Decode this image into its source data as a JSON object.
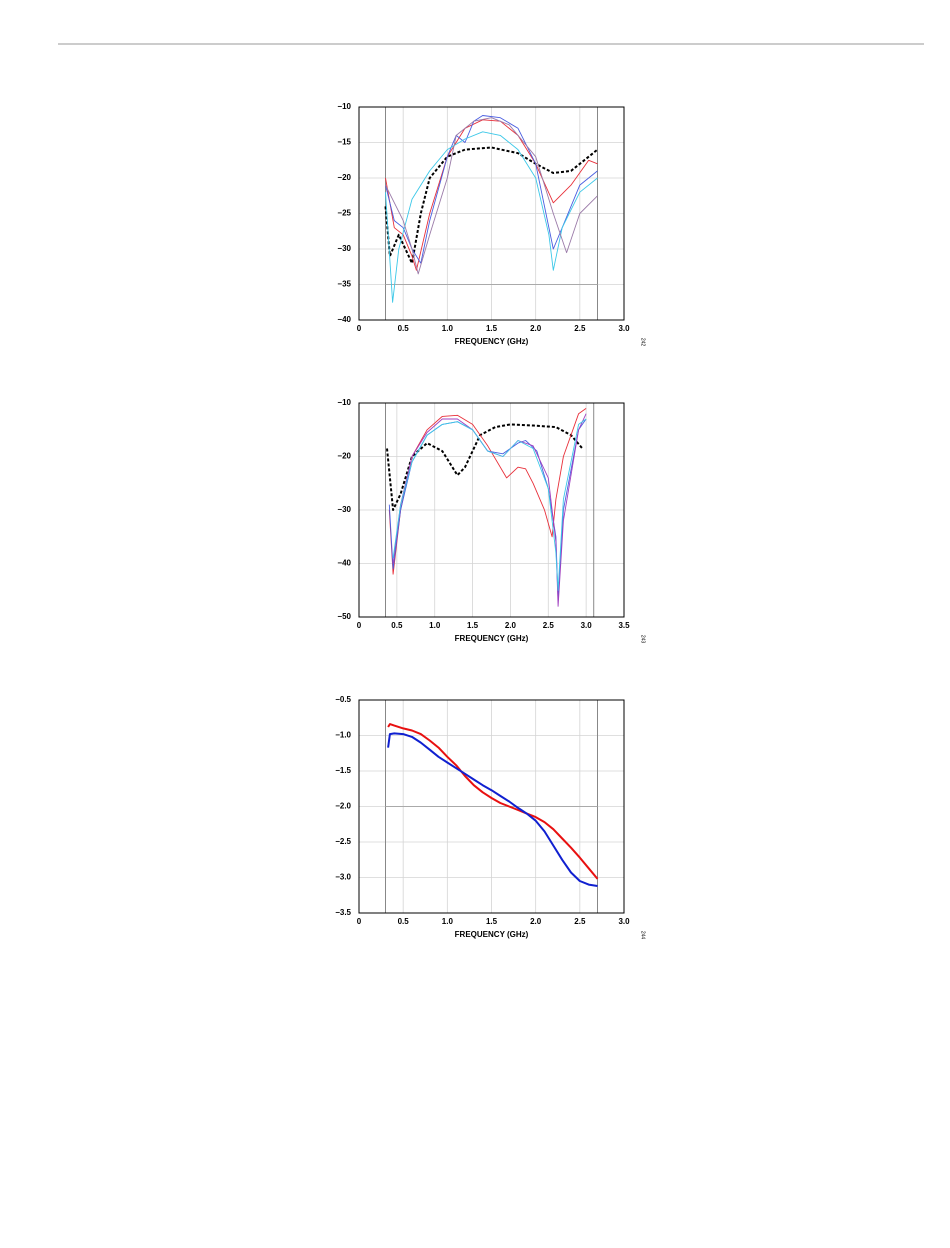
{
  "chart_data": [
    {
      "type": "line",
      "xlabel": "FREQUENCY (GHz)",
      "figure_number": "242",
      "xlim": [
        0,
        3
      ],
      "xticks": [
        0,
        0.5,
        {
          "value": 1,
          "label": "1.0"
        },
        1.5,
        {
          "value": 2,
          "label": "2.0"
        },
        2.5,
        {
          "value": 3,
          "label": "3.0"
        }
      ],
      "ylim": [
        -40,
        -10
      ],
      "yticks": [
        {
          "value": -10,
          "label": "−10"
        },
        {
          "value": -15,
          "label": "−15"
        },
        {
          "value": -20,
          "label": "−20"
        },
        {
          "value": -25,
          "label": "−25"
        },
        {
          "value": -30,
          "label": "−30"
        },
        {
          "value": -35,
          "label": "−35"
        },
        {
          "value": -40,
          "label": "−40"
        }
      ],
      "grid": true,
      "vlines": [
        0.3,
        2.7
      ],
      "hlines": [
        -35
      ],
      "series": [
        {
          "color": "#000000",
          "style": "dashed",
          "x": [
            0.3,
            0.35,
            0.45,
            0.6,
            0.7,
            0.8,
            1.0,
            1.2,
            1.5,
            1.8,
            2.0,
            2.2,
            2.4,
            2.6,
            2.7
          ],
          "y": [
            -24,
            -31,
            -28,
            -32,
            -25,
            -20,
            -17,
            -16,
            -15.7,
            -16.5,
            -18,
            -19.3,
            -19,
            -17,
            -16
          ]
        },
        {
          "color": "#e8303a",
          "style": "solid",
          "x": [
            0.3,
            0.4,
            0.5,
            0.6,
            0.65,
            0.8,
            1.0,
            1.2,
            1.4,
            1.6,
            1.8,
            2.0,
            2.2,
            2.4,
            2.6,
            2.7
          ],
          "y": [
            -20,
            -27,
            -28,
            -31,
            -33,
            -25,
            -17,
            -13,
            -11.8,
            -12,
            -14,
            -18,
            -23.5,
            -21,
            -17.5,
            -18
          ]
        },
        {
          "color": "#4a5ee0",
          "style": "solid",
          "x": [
            0.3,
            0.4,
            0.5,
            0.6,
            0.7,
            0.8,
            1.0,
            1.1,
            1.2,
            1.3,
            1.4,
            1.6,
            1.8,
            2.0,
            2.2,
            2.3,
            2.5,
            2.7
          ],
          "y": [
            -21,
            -26,
            -27,
            -30,
            -32,
            -26,
            -17,
            -14,
            -15,
            -12,
            -11.2,
            -11.5,
            -13,
            -18,
            -30,
            -27,
            -21,
            -19
          ]
        },
        {
          "color": "#3cc8e8",
          "style": "solid",
          "x": [
            0.3,
            0.38,
            0.45,
            0.6,
            0.8,
            1.0,
            1.2,
            1.4,
            1.6,
            1.8,
            2.0,
            2.15,
            2.2,
            2.3,
            2.5,
            2.7
          ],
          "y": [
            -22,
            -37.5,
            -30,
            -23,
            -19,
            -16,
            -14.5,
            -13.5,
            -14,
            -16,
            -20,
            -28,
            -33,
            -27,
            -22,
            -20
          ]
        },
        {
          "color": "#9a7aa8",
          "style": "solid",
          "x": [
            0.3,
            0.5,
            0.6,
            0.67,
            0.8,
            1.0,
            1.1,
            1.3,
            1.5,
            1.7,
            2.0,
            2.2,
            2.35,
            2.5,
            2.7
          ],
          "y": [
            -21,
            -26,
            -30,
            -33.5,
            -28,
            -20,
            -14,
            -12,
            -11.5,
            -12.5,
            -17,
            -25,
            -30.5,
            -25,
            -22.5
          ]
        }
      ]
    },
    {
      "type": "line",
      "xlabel": "FREQUENCY (GHz)",
      "figure_number": "243",
      "xlim": [
        0,
        3.5
      ],
      "xticks": [
        0,
        0.5,
        {
          "value": 1,
          "label": "1.0"
        },
        1.5,
        {
          "value": 2,
          "label": "2.0"
        },
        2.5,
        {
          "value": 3,
          "label": "3.0"
        },
        3.5
      ],
      "ylim": [
        -50,
        -10
      ],
      "yticks": [
        {
          "value": -10,
          "label": "−10"
        },
        {
          "value": -20,
          "label": "−20"
        },
        {
          "value": -30,
          "label": "−30"
        },
        {
          "value": -40,
          "label": "−40"
        },
        {
          "value": -50,
          "label": "−50"
        }
      ],
      "grid": true,
      "vlines": [
        0.35,
        3.1
      ],
      "hlines": [],
      "series": [
        {
          "color": "#000000",
          "style": "dashed",
          "x": [
            0.37,
            0.45,
            0.55,
            0.7,
            0.9,
            1.1,
            1.3,
            1.4,
            1.6,
            1.8,
            2.0,
            2.3,
            2.6,
            2.8,
            2.95
          ],
          "y": [
            -18.5,
            -30,
            -27,
            -20,
            -17.5,
            -19,
            -23.5,
            -22,
            -16,
            -14.5,
            -14,
            -14.2,
            -14.5,
            -16,
            -18.5
          ]
        },
        {
          "color": "#e8303a",
          "style": "solid",
          "x": [
            0.4,
            0.45,
            0.55,
            0.7,
            0.9,
            1.1,
            1.3,
            1.5,
            1.7,
            1.95,
            2.1,
            2.2,
            2.3,
            2.45,
            2.55,
            2.6,
            2.7,
            2.9,
            3.0
          ],
          "y": [
            -30,
            -42,
            -30,
            -20,
            -15,
            -12.5,
            -12.3,
            -14,
            -18,
            -24,
            -22,
            -22.3,
            -25,
            -30,
            -35,
            -28,
            -20,
            -12,
            -11
          ]
        },
        {
          "color": "#4a5ee0",
          "style": "solid",
          "x": [
            0.4,
            0.45,
            0.55,
            0.7,
            0.9,
            1.1,
            1.3,
            1.5,
            1.7,
            1.9,
            2.1,
            2.2,
            2.35,
            2.5,
            2.6,
            2.63,
            2.7,
            2.9,
            3.0
          ],
          "y": [
            -29,
            -41,
            -30,
            -21,
            -16,
            -14,
            -13.5,
            -15,
            -19,
            -19.5,
            -17.5,
            -17,
            -19,
            -26,
            -35,
            -47,
            -30,
            -15,
            -13
          ]
        },
        {
          "color": "#a040c0",
          "style": "solid",
          "x": [
            0.45,
            0.55,
            0.7,
            0.9,
            1.1,
            1.3,
            1.5,
            1.7,
            1.9,
            2.1,
            2.3,
            2.5,
            2.6,
            2.63,
            2.7,
            2.9,
            3.0
          ],
          "y": [
            -40,
            -29,
            -20,
            -15.5,
            -13,
            -13,
            -15,
            -19,
            -20,
            -17,
            -18,
            -24,
            -36,
            -48,
            -32,
            -15,
            -12
          ]
        },
        {
          "color": "#3cc8e8",
          "style": "solid",
          "x": [
            0.45,
            0.55,
            0.7,
            0.9,
            1.1,
            1.3,
            1.5,
            1.7,
            1.9,
            2.1,
            2.3,
            2.5,
            2.6,
            2.63,
            2.7,
            2.9,
            3.0
          ],
          "y": [
            -39,
            -29,
            -21,
            -16,
            -14,
            -13.5,
            -15,
            -19,
            -20,
            -17,
            -18.5,
            -26,
            -38,
            -45,
            -28,
            -14,
            -13
          ]
        }
      ]
    },
    {
      "type": "line",
      "xlabel": "FREQUENCY (GHz)",
      "figure_number": "244",
      "xlim": [
        0,
        3
      ],
      "xticks": [
        0,
        0.5,
        {
          "value": 1,
          "label": "1.0"
        },
        1.5,
        {
          "value": 2,
          "label": "2.0"
        },
        2.5,
        {
          "value": 3,
          "label": "3.0"
        }
      ],
      "ylim": [
        -3.5,
        -0.5
      ],
      "yticks": [
        {
          "value": -0.5,
          "label": "−0.5"
        },
        {
          "value": -1,
          "label": "−1.0"
        },
        {
          "value": -1.5,
          "label": "−1.5"
        },
        {
          "value": -2,
          "label": "−2.0"
        },
        {
          "value": -2.5,
          "label": "−2.5"
        },
        {
          "value": -3,
          "label": "−3.0"
        },
        {
          "value": -3.5,
          "label": "−3.5"
        }
      ],
      "grid": true,
      "vlines": [
        0.3,
        2.7
      ],
      "hlines": [
        -2
      ],
      "series": [
        {
          "color": "#e81010",
          "style": "thick",
          "x": [
            0.33,
            0.35,
            0.4,
            0.5,
            0.6,
            0.7,
            0.8,
            0.9,
            1.0,
            1.1,
            1.2,
            1.3,
            1.4,
            1.5,
            1.6,
            1.7,
            1.8,
            1.9,
            2.0,
            2.1,
            2.2,
            2.3,
            2.4,
            2.5,
            2.6,
            2.7
          ],
          "y": [
            -0.88,
            -0.84,
            -0.86,
            -0.9,
            -0.93,
            -0.98,
            -1.07,
            -1.17,
            -1.3,
            -1.42,
            -1.57,
            -1.7,
            -1.8,
            -1.88,
            -1.95,
            -2.0,
            -2.05,
            -2.1,
            -2.15,
            -2.22,
            -2.32,
            -2.45,
            -2.58,
            -2.72,
            -2.87,
            -3.02
          ]
        },
        {
          "color": "#1020d0",
          "style": "thick",
          "x": [
            0.33,
            0.35,
            0.4,
            0.5,
            0.6,
            0.7,
            0.8,
            0.9,
            1.0,
            1.1,
            1.2,
            1.3,
            1.4,
            1.5,
            1.6,
            1.7,
            1.8,
            1.9,
            2.0,
            2.1,
            2.2,
            2.3,
            2.4,
            2.5,
            2.6,
            2.7
          ],
          "y": [
            -1.17,
            -0.98,
            -0.97,
            -0.98,
            -1.02,
            -1.1,
            -1.2,
            -1.3,
            -1.38,
            -1.46,
            -1.54,
            -1.62,
            -1.7,
            -1.77,
            -1.85,
            -1.93,
            -2.02,
            -2.1,
            -2.2,
            -2.35,
            -2.55,
            -2.75,
            -2.93,
            -3.05,
            -3.1,
            -3.12
          ]
        }
      ]
    }
  ]
}
